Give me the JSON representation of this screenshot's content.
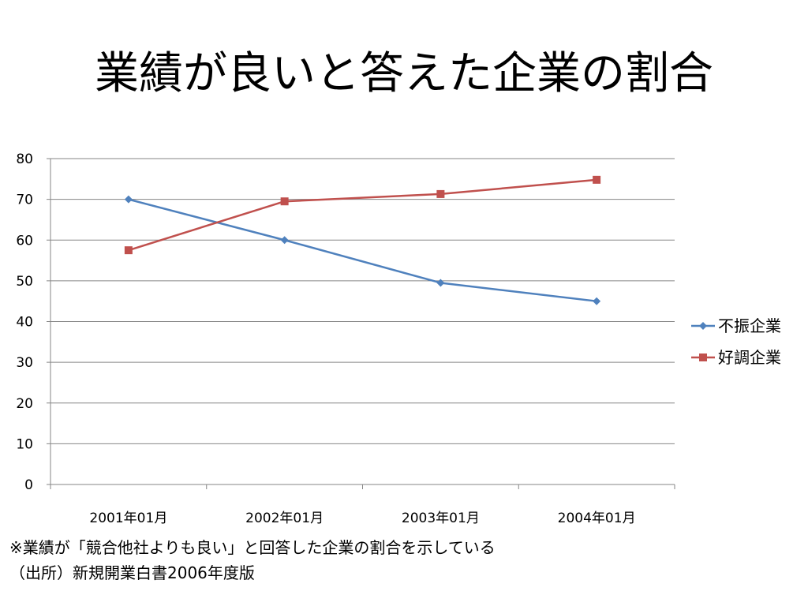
{
  "slide": {
    "title": "業績が良いと答えた企業の割合"
  },
  "notes": {
    "line1": "※業績が「競合他社よりも良い」と回答した企業の割合を示している",
    "line2": "（出所）新規開業白書2006年度版"
  },
  "chart_data": {
    "type": "line",
    "categories": [
      "2001年01月",
      "2002年01月",
      "2003年01月",
      "2004年01月"
    ],
    "series": [
      {
        "name": "不振企業",
        "values": [
          70,
          60,
          49.5,
          45
        ],
        "color": "#4F81BD",
        "marker": "diamond"
      },
      {
        "name": "好調企業",
        "values": [
          57.5,
          69.5,
          71.3,
          74.8
        ],
        "color": "#C0504D",
        "marker": "square"
      }
    ],
    "ylim": [
      0,
      80
    ],
    "yticks": [
      0,
      10,
      20,
      30,
      40,
      50,
      60,
      70,
      80
    ],
    "grid": true,
    "legend": "right",
    "gridColor": "#868686"
  }
}
